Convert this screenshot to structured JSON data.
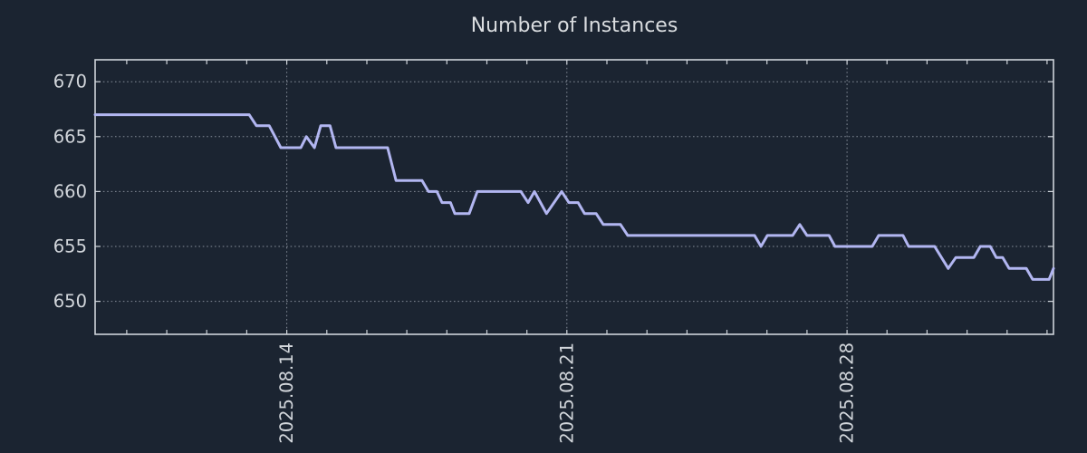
{
  "title": "Number of Instances",
  "colors": {
    "background": "#1b2431",
    "line": "#b2b6f1",
    "grid": "#8f97a3",
    "frame": "#cfd4da",
    "tick_text": "#d2d6db",
    "title_text": "#dadde0"
  },
  "chart_data": {
    "type": "line",
    "title": "Number of Instances",
    "legend": "none",
    "grid": "dotted gridlines at major ticks only, full plot frame, inward tick marks on all four sides",
    "x_axis": {
      "unit": "days relative to 2025-08-14 00:00",
      "range": [
        -4.79,
        19.16
      ],
      "major_ticks": [
        {
          "d": 0,
          "label": "2025.08.14"
        },
        {
          "d": 7,
          "label": "2025.08.21"
        },
        {
          "d": 14,
          "label": "2025.08.28"
        }
      ],
      "minor_tick_every_days": 1,
      "tick_label_rotation_deg": 90
    },
    "y_axis": {
      "range": [
        647,
        672
      ],
      "ticks": [
        650,
        655,
        660,
        665,
        670
      ]
    },
    "series": [
      {
        "name": "Number of Instances",
        "color": "#b2b6f1",
        "points": [
          [
            -4.79,
            667
          ],
          [
            -0.94,
            667
          ],
          [
            -0.76,
            666
          ],
          [
            -0.44,
            666
          ],
          [
            -0.15,
            664
          ],
          [
            0.35,
            664
          ],
          [
            0.49,
            665
          ],
          [
            0.69,
            664
          ],
          [
            0.85,
            666
          ],
          [
            1.08,
            666
          ],
          [
            1.23,
            664
          ],
          [
            2.52,
            664
          ],
          [
            2.73,
            661
          ],
          [
            3.38,
            661
          ],
          [
            3.54,
            660
          ],
          [
            3.75,
            660
          ],
          [
            3.88,
            659
          ],
          [
            4.09,
            659
          ],
          [
            4.2,
            658
          ],
          [
            4.56,
            658
          ],
          [
            4.76,
            660
          ],
          [
            5.85,
            660
          ],
          [
            6.03,
            659
          ],
          [
            6.19,
            660
          ],
          [
            6.49,
            658
          ],
          [
            6.87,
            660
          ],
          [
            7.05,
            659
          ],
          [
            7.28,
            659
          ],
          [
            7.44,
            658
          ],
          [
            7.73,
            658
          ],
          [
            7.91,
            657
          ],
          [
            8.34,
            657
          ],
          [
            8.52,
            656
          ],
          [
            11.69,
            656
          ],
          [
            11.85,
            655
          ],
          [
            12.01,
            656
          ],
          [
            12.64,
            656
          ],
          [
            12.82,
            657
          ],
          [
            13.0,
            656
          ],
          [
            13.55,
            656
          ],
          [
            13.7,
            655
          ],
          [
            14.63,
            655
          ],
          [
            14.79,
            656
          ],
          [
            15.4,
            656
          ],
          [
            15.54,
            655
          ],
          [
            16.19,
            655
          ],
          [
            16.53,
            653
          ],
          [
            16.72,
            654
          ],
          [
            17.17,
            654
          ],
          [
            17.33,
            655
          ],
          [
            17.58,
            655
          ],
          [
            17.73,
            654
          ],
          [
            17.89,
            654
          ],
          [
            18.05,
            653
          ],
          [
            18.48,
            653
          ],
          [
            18.64,
            652
          ],
          [
            19.05,
            652
          ],
          [
            19.16,
            653
          ]
        ]
      }
    ]
  }
}
